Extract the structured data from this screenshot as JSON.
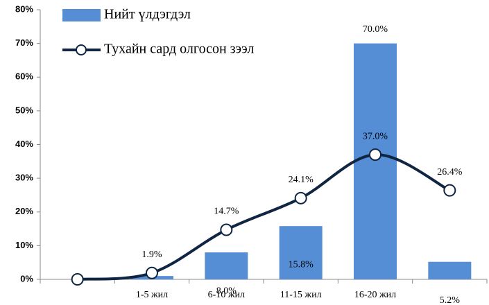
{
  "chart_data": {
    "type": "bar-line",
    "categories": [
      null,
      "1-5 жил",
      "6-10 жил",
      "11-15 жил",
      "16-20 жил",
      null
    ],
    "series": [
      {
        "name": "Нийт үлдэгдэл",
        "type": "bar",
        "color": "#558ed5",
        "values": [
          null,
          1.0,
          8.0,
          15.8,
          70.0,
          5.2
        ],
        "value_labels": [
          null,
          null,
          "8.0%",
          "15.8%",
          "70.0%",
          "5.2%"
        ]
      },
      {
        "name": "Тухайн сард олгосон зээл",
        "type": "line",
        "color": "#0f2542",
        "values": [
          0,
          1.9,
          14.7,
          24.1,
          37.0,
          26.4
        ],
        "value_labels": [
          null,
          "1.9%",
          "14.7%",
          "24.1%",
          "37.0%",
          "26.4%"
        ]
      }
    ],
    "ylim": [
      0,
      80
    ],
    "yticks": [
      {
        "value": 0,
        "label": "0%"
      },
      {
        "value": 10,
        "label": "10%"
      },
      {
        "value": 20,
        "label": "20%"
      },
      {
        "value": 30,
        "label": "30%"
      },
      {
        "value": 40,
        "label": "40%"
      },
      {
        "value": 50,
        "label": "50%"
      },
      {
        "value": 60,
        "label": "60%"
      },
      {
        "value": 70,
        "label": "70%"
      },
      {
        "value": 80,
        "label": "80%"
      }
    ],
    "legend": "top-left"
  }
}
